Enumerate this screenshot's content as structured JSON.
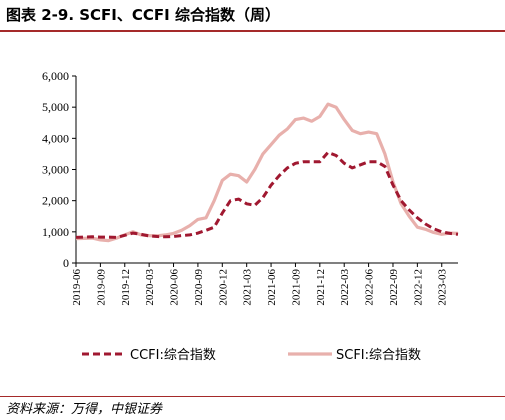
{
  "header": {
    "title": "图表 2-9. SCFI、CCFI 综合指数（周）"
  },
  "footer": {
    "source": "资料来源：万得，中银证券"
  },
  "colors": {
    "ccfi": "#a01830",
    "scfi": "#e8b0ac",
    "accent": "#a52a2a"
  },
  "chart_data": {
    "type": "line",
    "ylim": [
      0,
      6000
    ],
    "yticks": [
      "0",
      "1,000",
      "2,000",
      "3,000",
      "4,000",
      "5,000",
      "6,000"
    ],
    "ytick_values": [
      0,
      1000,
      2000,
      3000,
      4000,
      5000,
      6000
    ],
    "xlim": [
      "2019-06",
      "2023-05"
    ],
    "xticks": [
      "2019-06",
      "2019-09",
      "2019-12",
      "2020-03",
      "2020-06",
      "2020-09",
      "2020-12",
      "2021-03",
      "2021-06",
      "2021-09",
      "2021-12",
      "2022-03",
      "2022-06",
      "2022-09",
      "2022-12",
      "2023-03"
    ],
    "legend_position": "bottom",
    "series": [
      {
        "name": "CCFI:综合指数",
        "style": "dashed",
        "points": [
          [
            "2019-06",
            820
          ],
          [
            "2019-07",
            830
          ],
          [
            "2019-08",
            840
          ],
          [
            "2019-09",
            830
          ],
          [
            "2019-10",
            830
          ],
          [
            "2019-11",
            820
          ],
          [
            "2019-12",
            890
          ],
          [
            "2020-01",
            960
          ],
          [
            "2020-02",
            920
          ],
          [
            "2020-03",
            870
          ],
          [
            "2020-04",
            850
          ],
          [
            "2020-05",
            840
          ],
          [
            "2020-06",
            850
          ],
          [
            "2020-07",
            880
          ],
          [
            "2020-08",
            900
          ],
          [
            "2020-09",
            960
          ],
          [
            "2020-10",
            1050
          ],
          [
            "2020-11",
            1150
          ],
          [
            "2020-12",
            1600
          ],
          [
            "2021-01",
            2000
          ],
          [
            "2021-02",
            2050
          ],
          [
            "2021-03",
            1900
          ],
          [
            "2021-04",
            1850
          ],
          [
            "2021-05",
            2100
          ],
          [
            "2021-06",
            2500
          ],
          [
            "2021-07",
            2800
          ],
          [
            "2021-08",
            3050
          ],
          [
            "2021-09",
            3200
          ],
          [
            "2021-10",
            3250
          ],
          [
            "2021-11",
            3250
          ],
          [
            "2021-12",
            3250
          ],
          [
            "2022-01",
            3550
          ],
          [
            "2022-02",
            3450
          ],
          [
            "2022-03",
            3200
          ],
          [
            "2022-04",
            3050
          ],
          [
            "2022-05",
            3150
          ],
          [
            "2022-06",
            3250
          ],
          [
            "2022-07",
            3250
          ],
          [
            "2022-08",
            3100
          ],
          [
            "2022-09",
            2500
          ],
          [
            "2022-10",
            2000
          ],
          [
            "2022-11",
            1700
          ],
          [
            "2022-12",
            1450
          ],
          [
            "2023-01",
            1250
          ],
          [
            "2023-02",
            1100
          ],
          [
            "2023-03",
            1000
          ],
          [
            "2023-04",
            950
          ],
          [
            "2023-05",
            920
          ]
        ]
      },
      {
        "name": "SCFI:综合指数",
        "style": "solid",
        "points": [
          [
            "2019-06",
            780
          ],
          [
            "2019-07",
            790
          ],
          [
            "2019-08",
            800
          ],
          [
            "2019-09",
            740
          ],
          [
            "2019-10",
            720
          ],
          [
            "2019-11",
            800
          ],
          [
            "2019-12",
            900
          ],
          [
            "2020-01",
            1000
          ],
          [
            "2020-02",
            900
          ],
          [
            "2020-03",
            880
          ],
          [
            "2020-04",
            870
          ],
          [
            "2020-05",
            900
          ],
          [
            "2020-06",
            950
          ],
          [
            "2020-07",
            1050
          ],
          [
            "2020-08",
            1200
          ],
          [
            "2020-09",
            1400
          ],
          [
            "2020-10",
            1450
          ],
          [
            "2020-11",
            2000
          ],
          [
            "2020-12",
            2650
          ],
          [
            "2021-01",
            2850
          ],
          [
            "2021-02",
            2800
          ],
          [
            "2021-03",
            2600
          ],
          [
            "2021-04",
            3000
          ],
          [
            "2021-05",
            3500
          ],
          [
            "2021-06",
            3800
          ],
          [
            "2021-07",
            4100
          ],
          [
            "2021-08",
            4300
          ],
          [
            "2021-09",
            4600
          ],
          [
            "2021-10",
            4650
          ],
          [
            "2021-11",
            4550
          ],
          [
            "2021-12",
            4700
          ],
          [
            "2022-01",
            5100
          ],
          [
            "2022-02",
            5000
          ],
          [
            "2022-03",
            4600
          ],
          [
            "2022-04",
            4250
          ],
          [
            "2022-05",
            4150
          ],
          [
            "2022-06",
            4200
          ],
          [
            "2022-07",
            4150
          ],
          [
            "2022-08",
            3500
          ],
          [
            "2022-09",
            2600
          ],
          [
            "2022-10",
            1900
          ],
          [
            "2022-11",
            1500
          ],
          [
            "2022-12",
            1150
          ],
          [
            "2023-01",
            1080
          ],
          [
            "2023-02",
            980
          ],
          [
            "2023-03",
            920
          ],
          [
            "2023-04",
            960
          ],
          [
            "2023-05",
            950
          ]
        ]
      }
    ]
  }
}
